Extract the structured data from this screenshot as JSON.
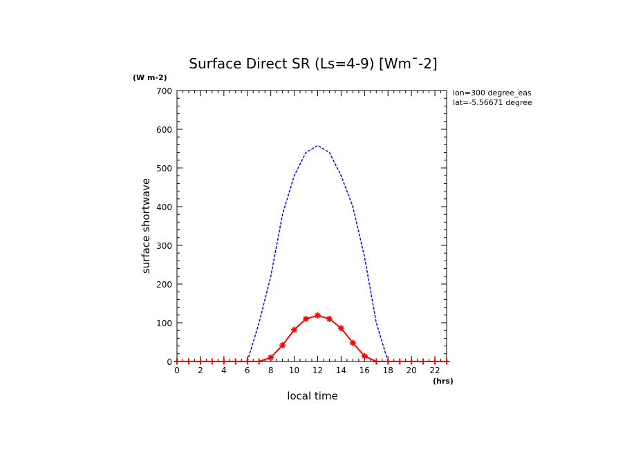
{
  "chart_data": {
    "type": "line",
    "title": "Surface Direct SR (Ls=4-9) [Wm¯-2]",
    "y_unit": "(W m-2)",
    "x_unit": "(hrs)",
    "xlabel": "local time",
    "ylabel": "surface shortwave",
    "annotations": [
      "lon=300 degree_eas",
      "lat=-5.56671 degree"
    ],
    "xlim": [
      0,
      23
    ],
    "ylim": [
      0,
      700
    ],
    "x_ticks": [
      0,
      2,
      4,
      6,
      8,
      10,
      12,
      14,
      16,
      18,
      20,
      22
    ],
    "x_tick_labels": [
      "0",
      "2",
      "4",
      "6",
      "8",
      "10",
      "12",
      "14",
      "16",
      "18",
      "20",
      "22"
    ],
    "y_ticks": [
      0,
      100,
      200,
      300,
      400,
      500,
      600,
      700
    ],
    "y_tick_labels": [
      "0",
      "100",
      "200",
      "300",
      "400",
      "500",
      "600",
      "700"
    ],
    "x": [
      0,
      1,
      2,
      3,
      4,
      5,
      6,
      7,
      8,
      9,
      10,
      11,
      12,
      13,
      14,
      15,
      16,
      17,
      18,
      19,
      20,
      21,
      22,
      23
    ],
    "series": [
      {
        "style": "dashed",
        "color": "#0000ff",
        "markers": false,
        "values": [
          0,
          0,
          0,
          0,
          0,
          0,
          0,
          100,
          220,
          380,
          480,
          540,
          558,
          540,
          480,
          400,
          270,
          100,
          0,
          0,
          0,
          0,
          0,
          0
        ]
      },
      {
        "style": "solid",
        "color": "#ff0000",
        "markers": true,
        "values": [
          0,
          0,
          0,
          0,
          0,
          0,
          0,
          0,
          10,
          42,
          82,
          110,
          119,
          110,
          86,
          48,
          14,
          0,
          0,
          0,
          0,
          0,
          0,
          0
        ]
      }
    ]
  }
}
